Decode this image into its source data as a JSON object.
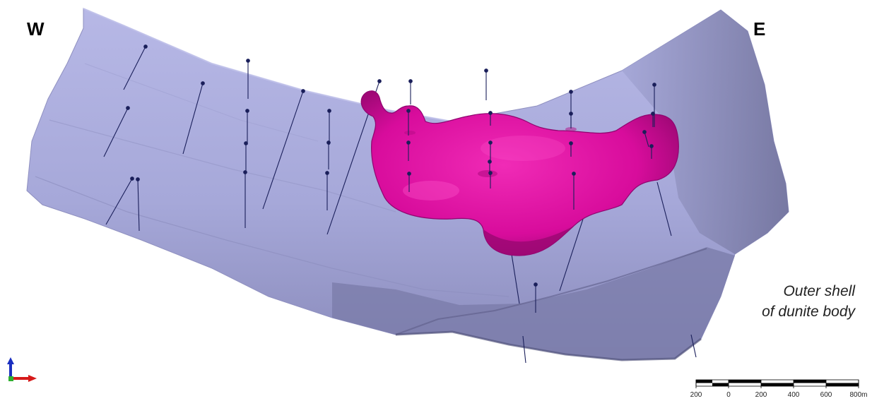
{
  "direction_labels": {
    "west": "W",
    "east": "E"
  },
  "caption": {
    "line1": "Outer shell",
    "line2": "of dunite body"
  },
  "scale_bar": {
    "labels": [
      "200",
      "0",
      "200",
      "400",
      "600",
      "800m"
    ],
    "unit": "m"
  },
  "colors": {
    "shell": "#a9aadb",
    "shell_dark": "#6c6d97",
    "ore_body": "#dc0ea0",
    "ore_body_dark": "#9a0872",
    "drillhole": "#1a1f5a"
  },
  "icons": {
    "axis_triad": "axis-triad-icon"
  }
}
